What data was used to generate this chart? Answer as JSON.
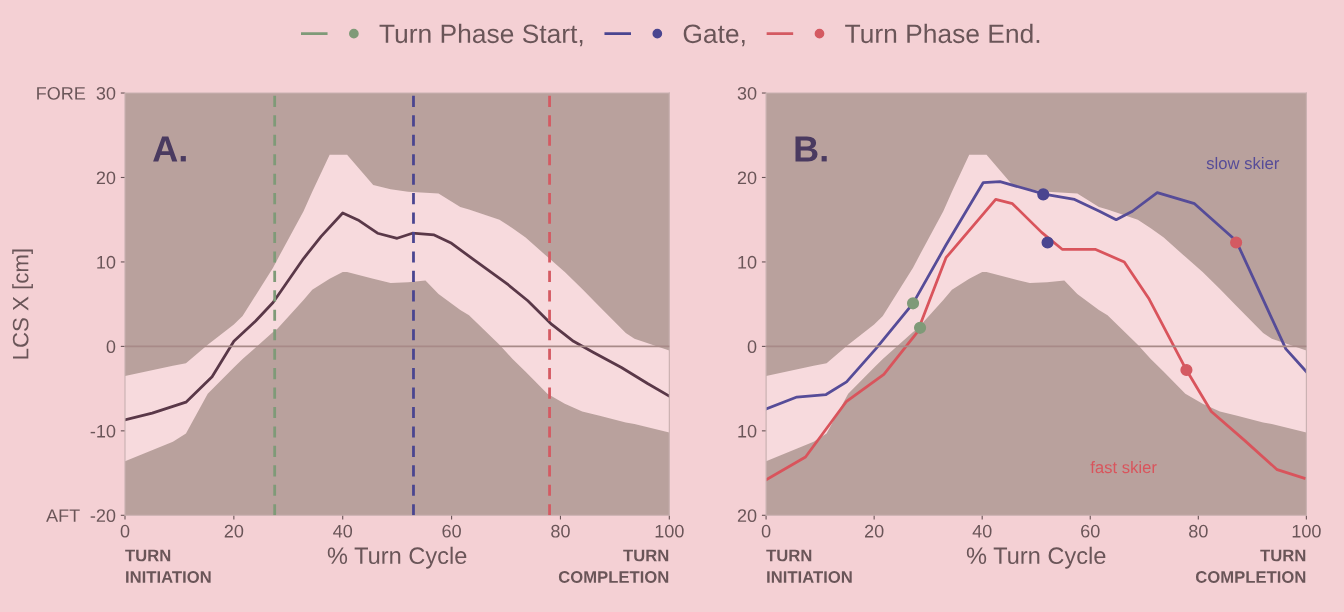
{
  "chart_data": [
    {
      "type": "line",
      "ylabel": "LCS X [cm]",
      "xlabel": "% Turn Cycle",
      "xlim": [
        0,
        100
      ],
      "xticks": [
        0,
        20,
        40,
        60,
        80,
        100
      ],
      "ylim": [
        -20,
        30
      ],
      "yticks": [
        {
          "value": 30,
          "label": "FORE  30"
        },
        20,
        10,
        0,
        -10,
        {
          "value": -20,
          "label": "AFT  -20"
        }
      ],
      "annotations": [
        "A.",
        "TURN\nINITIATION",
        "TURN\nCOMPLETION"
      ],
      "legend": "top",
      "grid": false,
      "ref_lines": [
        {
          "axis": "y",
          "value": 0,
          "color": "#a88a88",
          "line_style": "solid"
        },
        {
          "axis": "x",
          "value": 27.5,
          "label": "Turn Phase Start,",
          "color": "#7f9a78",
          "line_style": "dashed"
        },
        {
          "axis": "x",
          "value": 53,
          "label": "Gate,",
          "color": "#4a4590",
          "line_style": "dashed"
        },
        {
          "axis": "x",
          "value": 78,
          "label": "Turn Phase End.",
          "color": "#d45a62",
          "line_style": "dashed"
        }
      ],
      "series": [
        {
          "type": "area",
          "color": "#f7dadd",
          "x": [
            0,
            8.8,
            11.2,
            15.2,
            20,
            21.6,
            27.2,
            28,
            32.8,
            34.4,
            37.6,
            40,
            40.8,
            45.6,
            48.8,
            52,
            55.2,
            57.6,
            61.6,
            63.2,
            68.8,
            71.2,
            73.6,
            77.6,
            80.8,
            84,
            87.2,
            92,
            93.6,
            100
          ],
          "values": [
            null,
            null,
            null,
            null,
            null,
            null,
            null,
            null,
            null,
            null,
            null,
            null,
            null,
            null,
            null,
            null,
            null,
            null,
            null,
            null,
            null,
            null,
            null,
            null,
            null,
            null,
            null,
            null,
            null,
            null
          ],
          "lower": [
            -13.6,
            -11.3,
            -10.3,
            -5.6,
            -2.5,
            -1.5,
            1.7,
            2.1,
            5.5,
            6.7,
            8.0,
            8.8,
            8.8,
            8.0,
            7.5,
            7.6,
            7.8,
            6.2,
            4.3,
            3.7,
            0.2,
            -1.5,
            -3.0,
            -5.6,
            -6.8,
            -7.7,
            -8.2,
            -9.0,
            -9.2,
            -10.2
          ],
          "upper": [
            -3.5,
            -2.3,
            -2.0,
            0.2,
            2.6,
            3.6,
            9.3,
            10.3,
            16.0,
            18.3,
            22.7,
            22.7,
            22.7,
            19.1,
            18.6,
            18.3,
            18.2,
            18.1,
            16.5,
            16.2,
            15.0,
            14.0,
            12.9,
            10.6,
            8.8,
            6.8,
            4.7,
            1.6,
            0.9,
            -0.5
          ]
        },
        {
          "color": "#5a3848",
          "marker": "none",
          "line_style": "solid",
          "x": [
            0,
            5,
            11.2,
            16,
            20,
            24,
            27.2,
            30,
            32.8,
            36,
            40,
            43,
            46.4,
            50,
            52.8,
            56.8,
            60,
            64,
            70.4,
            74,
            78.4,
            82.4,
            86,
            91.2,
            96,
            100
          ],
          "values": [
            -8.7,
            -7.9,
            -6.6,
            -3.6,
            0.6,
            3.0,
            5.2,
            7.8,
            10.4,
            13.0,
            15.8,
            14.9,
            13.4,
            12.8,
            13.4,
            13.2,
            12.2,
            10.3,
            7.3,
            5.4,
            2.6,
            0.6,
            -0.7,
            -2.5,
            -4.4,
            -5.9
          ]
        }
      ]
    },
    {
      "type": "line",
      "xlim": [
        0,
        100
      ],
      "xticks": [
        0,
        20,
        40,
        60,
        80,
        100
      ],
      "ylim": [
        -20,
        30
      ],
      "yticks": [
        30,
        20,
        10,
        0,
        {
          "value": -10,
          "label": "10"
        },
        {
          "value": -20,
          "label": "20"
        }
      ],
      "xlabel": "% Turn Cycle",
      "annotations": [
        "B.",
        "TURN\nINITIATION",
        "TURN\nCOMPLETION"
      ],
      "grid": false,
      "ref_lines": [
        {
          "axis": "y",
          "value": 0,
          "color": "#a88a88",
          "line_style": "solid"
        }
      ],
      "series": [
        {
          "type": "area",
          "color": "#f7dadd",
          "x": [
            0,
            8.8,
            11.2,
            15.2,
            20,
            21.6,
            27.2,
            28,
            32.8,
            34.4,
            37.6,
            40,
            40.8,
            45.6,
            48.8,
            52,
            55.2,
            57.6,
            61.6,
            63.2,
            68.8,
            71.2,
            73.6,
            77.6,
            80.8,
            84,
            87.2,
            92,
            93.6,
            100
          ],
          "values": [
            null,
            null,
            null,
            null,
            null,
            null,
            null,
            null,
            null,
            null,
            null,
            null,
            null,
            null,
            null,
            null,
            null,
            null,
            null,
            null,
            null,
            null,
            null,
            null,
            null,
            null,
            null,
            null,
            null,
            null
          ],
          "lower": [
            -13.6,
            -11.3,
            -10.3,
            -5.6,
            -2.5,
            -1.5,
            1.7,
            2.1,
            5.5,
            6.7,
            8.0,
            8.8,
            8.8,
            8.0,
            7.5,
            7.6,
            7.8,
            6.2,
            4.3,
            3.7,
            0.2,
            -1.5,
            -3.0,
            -5.6,
            -6.8,
            -7.7,
            -8.2,
            -9.0,
            -9.2,
            -10.2
          ],
          "upper": [
            -3.5,
            -2.3,
            -2.0,
            0.2,
            2.6,
            3.6,
            9.3,
            10.3,
            16.0,
            18.3,
            22.7,
            22.7,
            22.7,
            19.1,
            18.6,
            18.3,
            18.2,
            18.1,
            16.5,
            16.2,
            15.0,
            14.0,
            12.9,
            10.6,
            8.8,
            6.8,
            4.7,
            1.6,
            0.9,
            -0.5
          ]
        },
        {
          "name": "slow skier",
          "color": "#564c98",
          "marker": "none",
          "line_style": "solid",
          "x": [
            0,
            5.7,
            11.1,
            14.9,
            20.3,
            27.2,
            33.3,
            40.2,
            43.3,
            51.7,
            57.1,
            61.7,
            64.8,
            67.8,
            72.4,
            79.3,
            87,
            91.6,
            96.2,
            100
          ],
          "values": [
            -7.4,
            -6.0,
            -5.7,
            -4.2,
            -0.3,
            5.1,
            12.0,
            19.4,
            19.5,
            18.0,
            17.4,
            16.0,
            15.0,
            16.0,
            18.2,
            16.9,
            12.5,
            6.1,
            -0.3,
            -3.0
          ]
        },
        {
          "name": "fast skier",
          "color": "#d9545c",
          "marker": "none",
          "line_style": "solid",
          "x": [
            0,
            7.3,
            14.9,
            21.8,
            28,
            33.3,
            42.5,
            45.6,
            51,
            54.8,
            60.9,
            66.3,
            70.9,
            77.8,
            82.4,
            88.5,
            94.6,
            99.6
          ],
          "values": [
            -15.8,
            -13.1,
            -6.5,
            -3.3,
            1.7,
            10.5,
            17.4,
            16.9,
            13.5,
            11.5,
            11.5,
            10.0,
            5.6,
            -2.8,
            -7.7,
            -11.1,
            -14.6,
            -15.6
          ]
        },
        {
          "type": "scatter",
          "marker": "circle",
          "x": [
            27.2,
            51.3,
            87,
            28.5,
            52.1,
            77.8
          ],
          "values": [
            5.1,
            18.0,
            12.3,
            2.2,
            12.3,
            -2.8
          ],
          "colors": [
            "#7f9a78",
            "#4a4590",
            "#d45a62",
            "#7f9a78",
            "#4a4590",
            "#d45a62"
          ]
        }
      ]
    }
  ]
}
